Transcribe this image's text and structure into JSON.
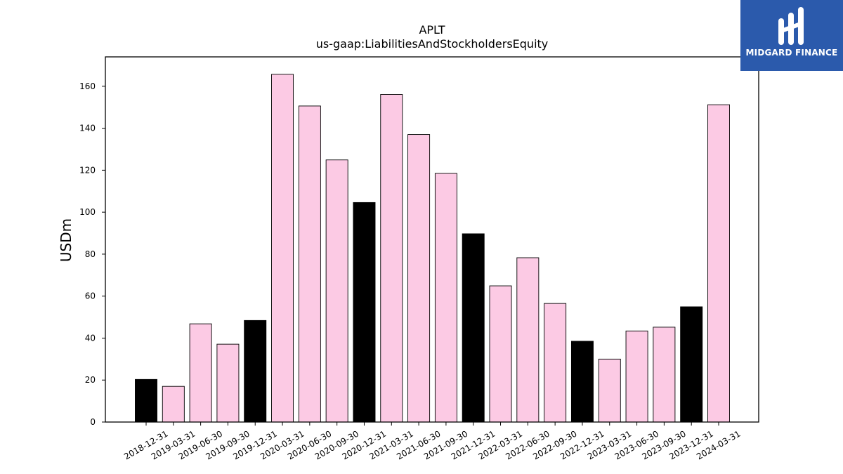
{
  "chart_data": {
    "type": "bar",
    "title": "APLT",
    "subtitle": "us-gaap:LiabilitiesAndStockholdersEquity",
    "ylabel": "USDm",
    "xlabel": "",
    "ylim": [
      0,
      174
    ],
    "yticks": [
      0,
      20,
      40,
      60,
      80,
      100,
      120,
      140,
      160
    ],
    "grid": false,
    "categories": [
      "2018-12-31",
      "2019-03-31",
      "2019-06-30",
      "2019-09-30",
      "2019-12-31",
      "2020-03-31",
      "2020-06-30",
      "2020-09-30",
      "2020-12-31",
      "2021-03-31",
      "2021-06-30",
      "2021-09-30",
      "2021-12-31",
      "2022-03-31",
      "2022-06-30",
      "2022-09-30",
      "2022-12-31",
      "2023-03-31",
      "2023-06-30",
      "2023-09-30",
      "2023-12-31",
      "2024-03-31"
    ],
    "values": [
      20.3,
      17.0,
      46.8,
      37.1,
      48.4,
      165.7,
      150.6,
      124.9,
      104.6,
      156.1,
      137.0,
      118.5,
      89.7,
      64.9,
      78.3,
      56.5,
      38.5,
      30.0,
      43.4,
      45.2,
      54.9,
      151.2
    ],
    "colors": {
      "quarter": "#fccae4",
      "year_end": "#000000",
      "edge": "#000000"
    }
  },
  "logo": {
    "text": "MIDGARD FINANCE",
    "background": "#2b5aac"
  }
}
